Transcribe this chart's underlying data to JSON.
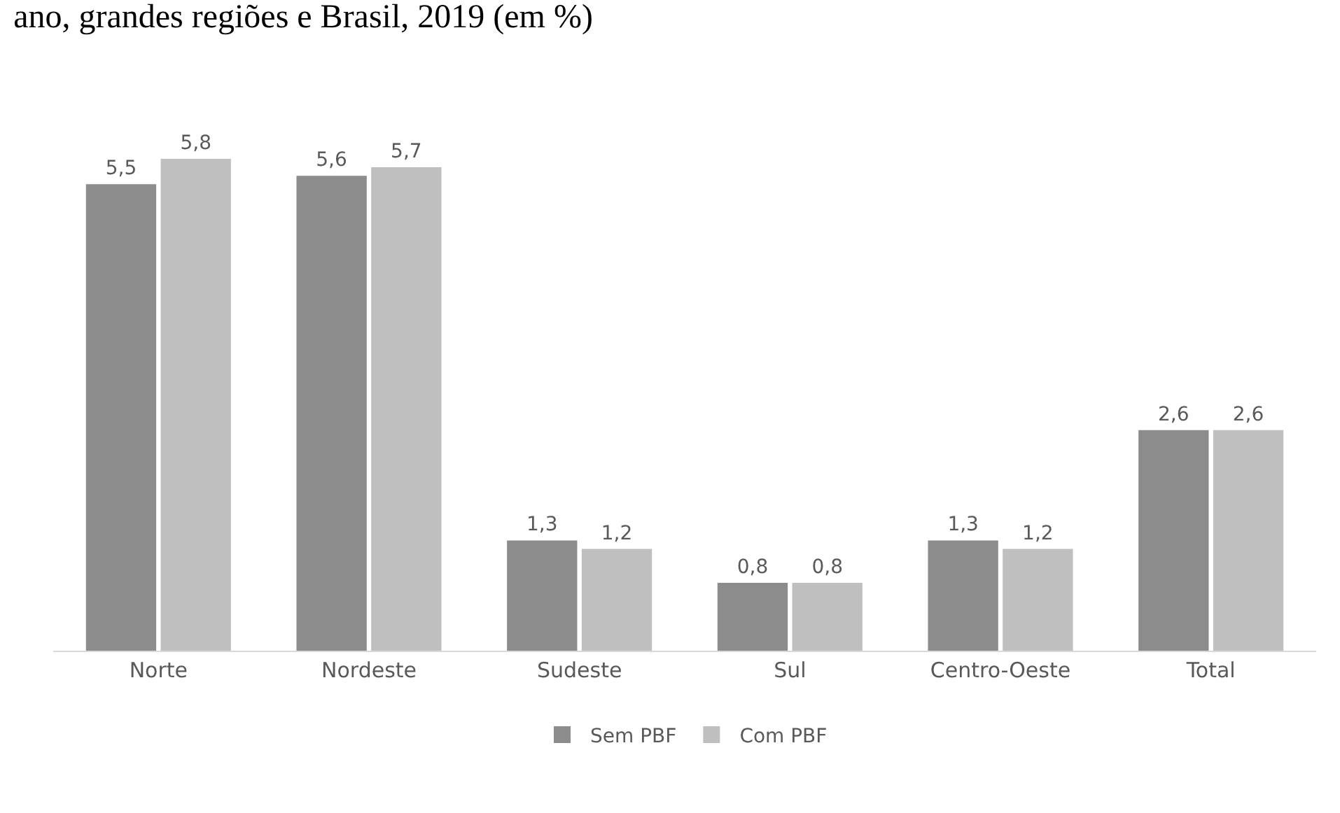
{
  "chart_data": {
    "type": "bar",
    "title": "ano, grandes regiões e Brasil, 2019 (em %)",
    "categories": [
      "Norte",
      "Nordeste",
      "Sudeste",
      "Sul",
      "Centro-Oeste",
      "Total"
    ],
    "series": [
      {
        "name": "Sem PBF",
        "color": "#8c8c8c",
        "values": [
          5.5,
          5.6,
          1.3,
          0.8,
          1.3,
          2.6
        ],
        "value_labels": [
          "5,5",
          "5,6",
          "1,3",
          "0,8",
          "1,3",
          "2,6"
        ]
      },
      {
        "name": "Com PBF",
        "color": "#bfbfbf",
        "values": [
          5.8,
          5.7,
          1.2,
          0.8,
          1.2,
          2.6
        ],
        "value_labels": [
          "5,8",
          "5,7",
          "1,2",
          "0,8",
          "1,2",
          "2,6"
        ]
      }
    ],
    "grid": false,
    "legend": "bottom"
  }
}
